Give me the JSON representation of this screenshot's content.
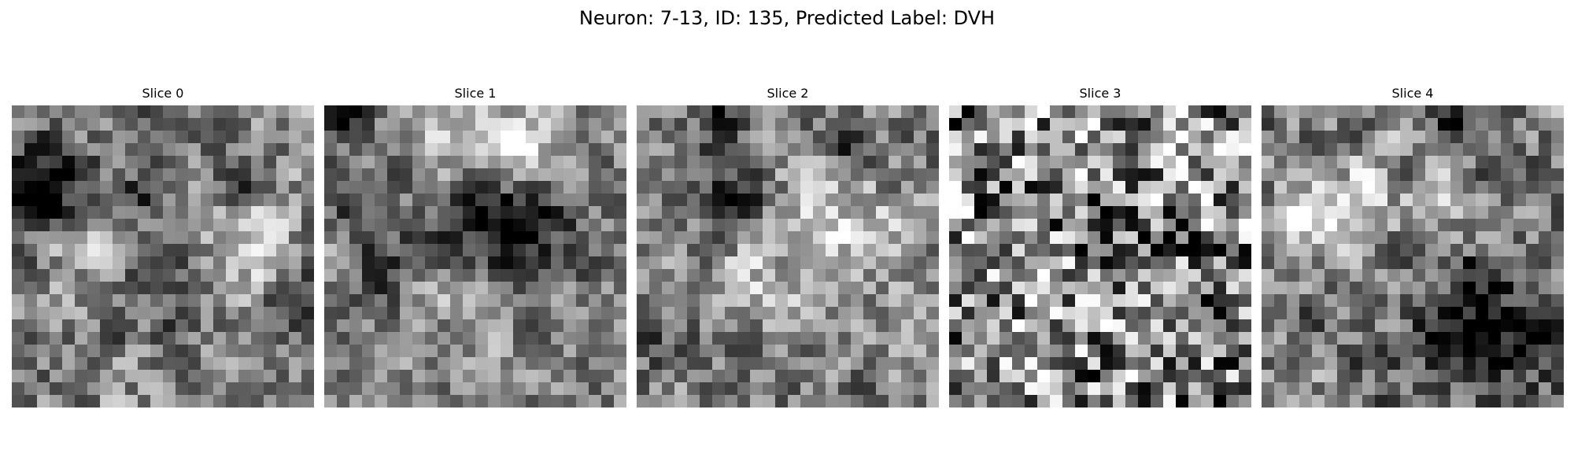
{
  "figure": {
    "title": "Neuron: 7-13, ID: 135, Predicted Label: DVH"
  },
  "slices": [
    {
      "label": "Slice 0"
    },
    {
      "label": "Slice 1"
    },
    {
      "label": "Slice 2"
    },
    {
      "label": "Slice 3"
    },
    {
      "label": "Slice 4"
    }
  ],
  "colormap": "gray"
}
